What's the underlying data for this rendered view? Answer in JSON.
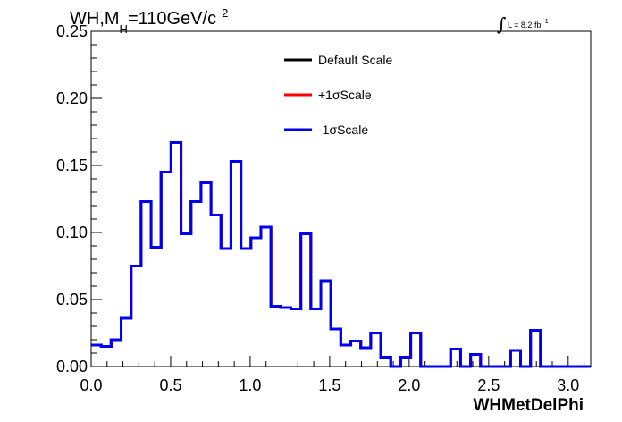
{
  "header": {
    "title_main": "WH,M",
    "title_sub": "H",
    "title_rest": "=110GeV/c",
    "title_sup": "2",
    "lumi_integral": "∫",
    "lumi_text": "L = 8.2 fb",
    "lumi_sup": "-1"
  },
  "chart_data": {
    "type": "line",
    "step": true,
    "xlabel": "WHMetDelPhi",
    "ylabel": "",
    "xlim": [
      0,
      3.1416
    ],
    "ylim": [
      0,
      0.25
    ],
    "x_ticks": [
      "0.0",
      "0.5",
      "1.0",
      "1.5",
      "2.0",
      "2.5",
      "3.0"
    ],
    "x_tick_values": [
      0,
      0.5,
      1.0,
      1.5,
      2.0,
      2.5,
      3.0
    ],
    "y_ticks": [
      "0.00",
      "0.05",
      "0.10",
      "0.15",
      "0.20",
      "0.25"
    ],
    "y_tick_values": [
      0,
      0.05,
      0.1,
      0.15,
      0.2,
      0.25
    ],
    "bin_width": 0.0628,
    "legend_position": "top-center",
    "series": [
      {
        "name": "Default Scale",
        "color": "#000000",
        "values": [
          0.016,
          0.015,
          0.02,
          0.036,
          0.075,
          0.123,
          0.089,
          0.145,
          0.167,
          0.099,
          0.123,
          0.137,
          0.113,
          0.088,
          0.153,
          0.088,
          0.096,
          0.104,
          0.045,
          0.044,
          0.043,
          0.099,
          0.043,
          0.064,
          0.028,
          0.016,
          0.019,
          0.014,
          0.025,
          0.007,
          0.0,
          0.007,
          0.025,
          0.0,
          0.0,
          0.0,
          0.013,
          0.0,
          0.009,
          0.0,
          0.0,
          0.0,
          0.012,
          0.0,
          0.027,
          0.0,
          0.0,
          0.0,
          0.0,
          0.0
        ]
      },
      {
        "name": "+1σScale",
        "color": "#ff0000",
        "values": [
          0.016,
          0.015,
          0.02,
          0.036,
          0.075,
          0.123,
          0.089,
          0.145,
          0.167,
          0.099,
          0.123,
          0.137,
          0.113,
          0.088,
          0.153,
          0.088,
          0.096,
          0.104,
          0.045,
          0.044,
          0.043,
          0.099,
          0.043,
          0.064,
          0.028,
          0.016,
          0.019,
          0.014,
          0.025,
          0.007,
          0.0,
          0.007,
          0.025,
          0.0,
          0.0,
          0.0,
          0.013,
          0.0,
          0.009,
          0.0,
          0.0,
          0.0,
          0.012,
          0.0,
          0.027,
          0.0,
          0.0,
          0.0,
          0.0,
          0.0
        ]
      },
      {
        "name": "-1σScale",
        "color": "#0000ee",
        "values": [
          0.016,
          0.015,
          0.02,
          0.036,
          0.075,
          0.123,
          0.089,
          0.145,
          0.167,
          0.099,
          0.123,
          0.137,
          0.113,
          0.088,
          0.153,
          0.088,
          0.096,
          0.104,
          0.045,
          0.044,
          0.043,
          0.099,
          0.043,
          0.064,
          0.028,
          0.016,
          0.019,
          0.014,
          0.025,
          0.007,
          0.0,
          0.007,
          0.025,
          0.0,
          0.0,
          0.0,
          0.013,
          0.0,
          0.009,
          0.0,
          0.0,
          0.0,
          0.012,
          0.0,
          0.027,
          0.0,
          0.0,
          0.0,
          0.0,
          0.0
        ]
      }
    ]
  }
}
